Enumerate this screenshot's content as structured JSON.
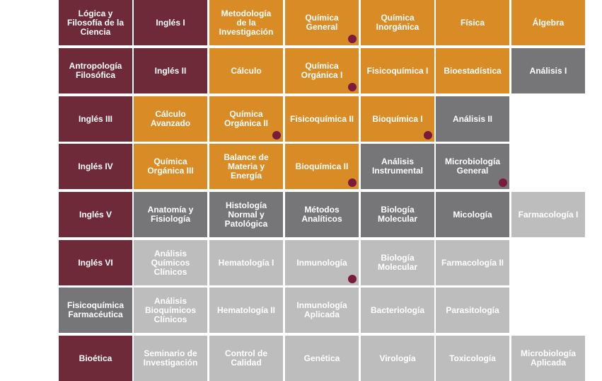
{
  "colors": {
    "wine": "#6e2a38",
    "orange": "#d98c26",
    "dark_gray": "#767679",
    "light_gray": "#bdbdbd",
    "marker": "#7a1a3c"
  },
  "rows": [
    [
      {
        "label": "Lógica y\nFilosofía de la\nCiencia",
        "color": "wine",
        "mark": false
      },
      {
        "label": "Inglés I",
        "color": "wine",
        "mark": false
      },
      {
        "label": "Metodología\nde la\nInvestigación",
        "color": "orange",
        "mark": false
      },
      {
        "label": "Química\nGeneral",
        "color": "orange",
        "mark": true
      },
      {
        "label": "Química\nInorgánica",
        "color": "orange",
        "mark": false
      },
      {
        "label": "Física",
        "color": "orange",
        "mark": false
      },
      {
        "label": "Álgebra",
        "color": "orange",
        "mark": false
      }
    ],
    [
      {
        "label": "Antropología\nFilosófica",
        "color": "wine",
        "mark": false
      },
      {
        "label": "Inglés II",
        "color": "wine",
        "mark": false
      },
      {
        "label": "Cálculo",
        "color": "orange",
        "mark": false
      },
      {
        "label": "Química\nOrgánica I",
        "color": "orange",
        "mark": true
      },
      {
        "label": "Fisicoquímica I",
        "color": "orange",
        "mark": false
      },
      {
        "label": "Bioestadística",
        "color": "orange",
        "mark": false
      },
      {
        "label": "Análisis I",
        "color": "dark_gray",
        "mark": false
      }
    ],
    [
      {
        "label": "Inglés III",
        "color": "wine",
        "mark": false
      },
      {
        "label": "Cálculo\nAvanzado",
        "color": "orange",
        "mark": false
      },
      {
        "label": "Química\nOrgánica II",
        "color": "orange",
        "mark": true
      },
      {
        "label": "Fisicoquímica II",
        "color": "orange",
        "mark": false
      },
      {
        "label": "Bioquímica I",
        "color": "orange",
        "mark": true
      },
      {
        "label": "Análisis II",
        "color": "dark_gray",
        "mark": false
      }
    ],
    [
      {
        "label": "Inglés IV",
        "color": "wine",
        "mark": false
      },
      {
        "label": "Química\nOrgánica  III",
        "color": "orange",
        "mark": false
      },
      {
        "label": "Balance de\nMateria y\nEnergía",
        "color": "orange",
        "mark": false
      },
      {
        "label": "Bioquímica II",
        "color": "orange",
        "mark": true
      },
      {
        "label": "Análisis\nInstrumental",
        "color": "dark_gray",
        "mark": false
      },
      {
        "label": "Microbiología\nGeneral",
        "color": "dark_gray",
        "mark": true
      }
    ],
    [
      {
        "label": "Inglés V",
        "color": "wine",
        "mark": false
      },
      {
        "label": "Anatomía y\nFisiología",
        "color": "dark_gray",
        "mark": false
      },
      {
        "label": "Histología\nNormal y\nPatológica",
        "color": "dark_gray",
        "mark": false
      },
      {
        "label": "Métodos\nAnalíticos",
        "color": "dark_gray",
        "mark": false
      },
      {
        "label": "Biología\nMolecular",
        "color": "dark_gray",
        "mark": false
      },
      {
        "label": "Micología",
        "color": "dark_gray",
        "mark": false
      },
      {
        "label": "Farmacología I",
        "color": "light_gray",
        "mark": false
      }
    ],
    [
      {
        "label": "Inglés VI",
        "color": "wine",
        "mark": false
      },
      {
        "label": "Análisis\nQuímicos\nClínicos",
        "color": "light_gray",
        "mark": false
      },
      {
        "label": "Hematología I",
        "color": "light_gray",
        "mark": false
      },
      {
        "label": "Inmunología",
        "color": "light_gray",
        "mark": true
      },
      {
        "label": "Biología\nMolecular",
        "color": "light_gray",
        "mark": false
      },
      {
        "label": "Farmacología II",
        "color": "light_gray",
        "mark": false
      }
    ],
    [
      {
        "label": "Fisicoquímica\nFarmacéutica",
        "color": "dark_gray",
        "mark": false
      },
      {
        "label": "Análisis\nBioquímicos\nClínicos",
        "color": "light_gray",
        "mark": false
      },
      {
        "label": "Hematología II",
        "color": "light_gray",
        "mark": false
      },
      {
        "label": "Inmunología\nAplicada",
        "color": "light_gray",
        "mark": false
      },
      {
        "label": "Bacteriología",
        "color": "light_gray",
        "mark": false
      },
      {
        "label": "Parasitología",
        "color": "light_gray",
        "mark": false
      }
    ],
    [
      {
        "label": "Bioética",
        "color": "wine",
        "mark": false
      },
      {
        "label": "Seminario de\nInvestigación",
        "color": "light_gray",
        "mark": false
      },
      {
        "label": "Control de\nCalidad",
        "color": "light_gray",
        "mark": false
      },
      {
        "label": "Genética",
        "color": "light_gray",
        "mark": false
      },
      {
        "label": "Virología",
        "color": "light_gray",
        "mark": false
      },
      {
        "label": "Toxicología",
        "color": "light_gray",
        "mark": false
      },
      {
        "label": "Microbiología\nAplicada",
        "color": "light_gray",
        "mark": false
      }
    ]
  ]
}
